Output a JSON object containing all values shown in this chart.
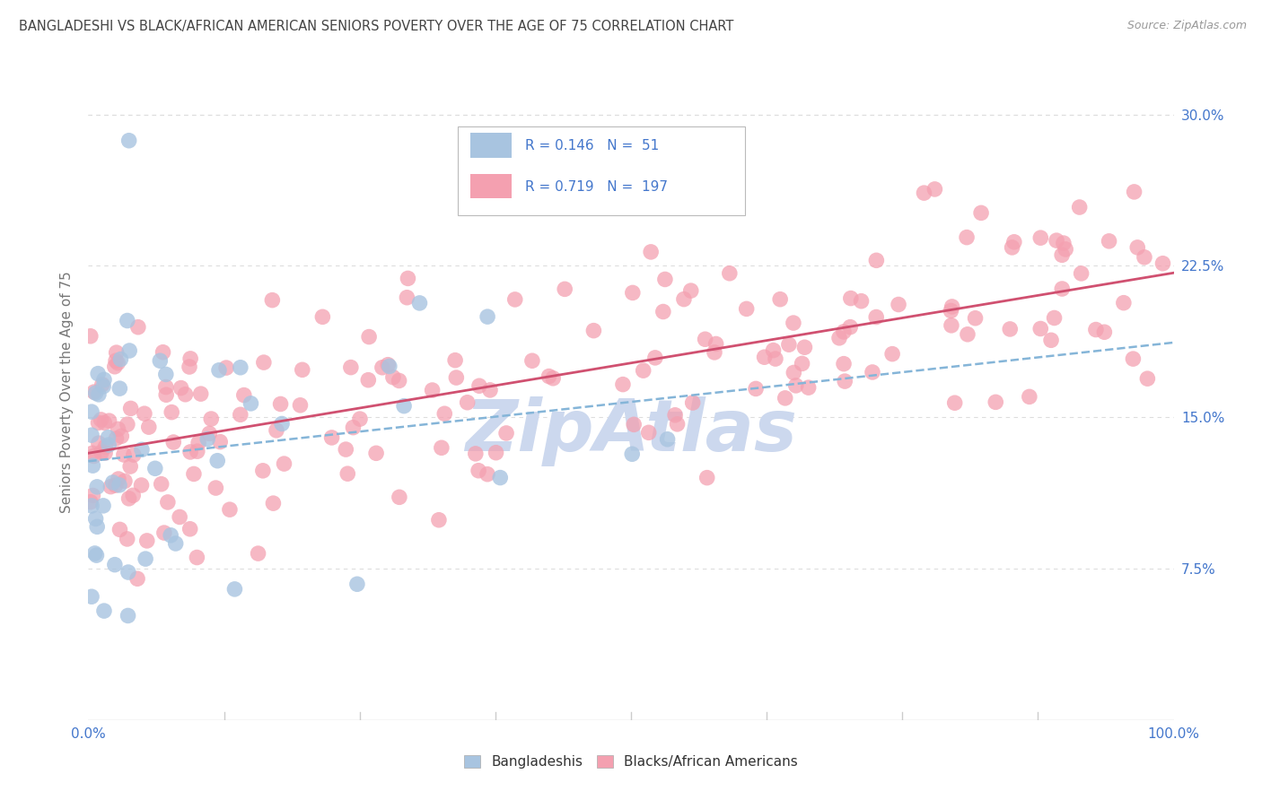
{
  "title": "BANGLADESHI VS BLACK/AFRICAN AMERICAN SENIORS POVERTY OVER THE AGE OF 75 CORRELATION CHART",
  "source": "Source: ZipAtlas.com",
  "ylabel": "Seniors Poverty Over the Age of 75",
  "legend_label_1": "Bangladeshis",
  "legend_label_2": "Blacks/African Americans",
  "R1": 0.146,
  "N1": 51,
  "R2": 0.719,
  "N2": 197,
  "color1": "#a8c4e0",
  "color2": "#f4a0b0",
  "trendline1_color": "#85b5d8",
  "trendline2_color": "#d05070",
  "title_color": "#444444",
  "axis_label_color": "#4477cc",
  "ylabel_color": "#777777",
  "watermark_color": "#ccd8ee",
  "xlim": [
    0.0,
    1.0
  ],
  "ylim": [
    0.0,
    0.325
  ],
  "yticks": [
    0.075,
    0.15,
    0.225,
    0.3
  ],
  "ytick_labels": [
    "7.5%",
    "15.0%",
    "22.5%",
    "30.0%"
  ],
  "xtick_labels_edge": [
    "0.0%",
    "100.0%"
  ],
  "xticks_edge": [
    0.0,
    1.0
  ],
  "grid_color": "#dddddd",
  "axis_line_color": "#cccccc"
}
